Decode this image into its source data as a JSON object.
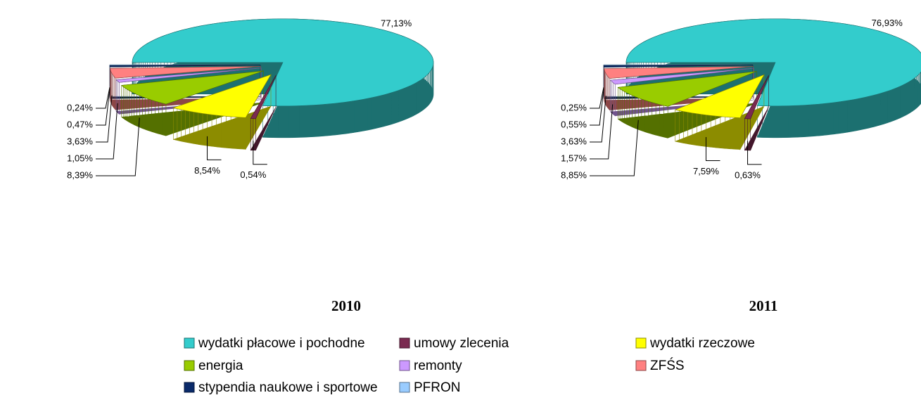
{
  "chart_data": [
    {
      "type": "pie",
      "title": "2010",
      "values": [
        77.13,
        0.54,
        8.54,
        8.39,
        1.05,
        3.63,
        0.47,
        0.24
      ],
      "value_labels": [
        "77,13%",
        "0,54%",
        "8,54%",
        "8,39%",
        "1,05%",
        "3,63%",
        "0,47%",
        "0,24%"
      ]
    },
    {
      "type": "pie",
      "title": "2011",
      "values": [
        76.93,
        0.63,
        7.59,
        8.85,
        1.57,
        3.63,
        0.55,
        0.25
      ],
      "value_labels": [
        "76,93%",
        "0,63%",
        "7,59%",
        "8,85%",
        "1,57%",
        "3,63%",
        "0,55%",
        "0,25%"
      ]
    }
  ],
  "legend": {
    "labels": [
      "wydatki płacowe i pochodne",
      "umowy zlecenia",
      "wydatki rzeczowe",
      "energia",
      "remonty",
      "ZFŚS",
      "stypendia naukowe i sportowe",
      "PFRON"
    ],
    "colors": [
      "#33cccc",
      "#7a2a50",
      "#ffff00",
      "#99cc00",
      "#cc99ff",
      "#ff8080",
      "#0a2a6a",
      "#99ccff"
    ]
  }
}
